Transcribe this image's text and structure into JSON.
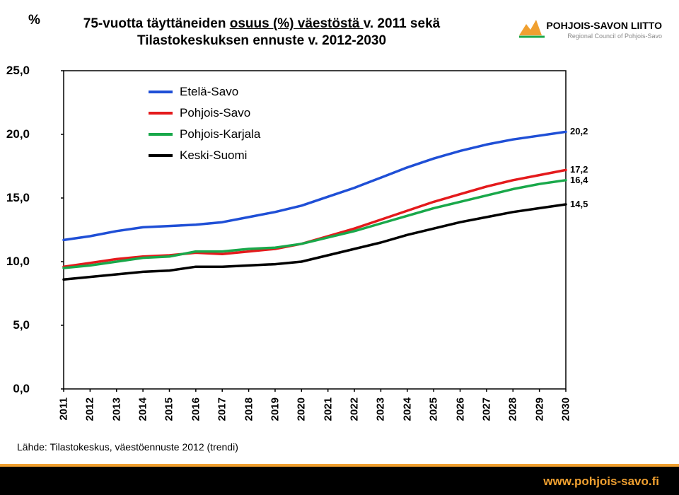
{
  "title_line1_pre": "75-vuotta täyttäneiden ",
  "title_line1_u": "osuus (%) väestöstä ",
  "title_line1_post": "v. 2011 sekä",
  "title_line2": "Tilastokeskuksen ennuste v. 2012-2030",
  "y_axis_symbol": "%",
  "logo_text": "POHJOIS-SAVON LIITTO",
  "logo_sub": "Regional Council of Pohjois-Savo",
  "source_text": "Lähde: Tilastokeskus, väestöennuste 2012 (trendi)",
  "footer_url": "www.pohjois-savo.fi",
  "chart": {
    "type": "line",
    "background_color": "#ffffff",
    "border_color": "#000000",
    "border_width": 1.5,
    "x": [
      2011,
      2012,
      2013,
      2014,
      2015,
      2016,
      2017,
      2018,
      2019,
      2020,
      2021,
      2022,
      2023,
      2024,
      2025,
      2026,
      2027,
      2028,
      2029,
      2030
    ],
    "ylim": [
      0,
      25
    ],
    "ytick_step": 5,
    "yticks": [
      "0,0",
      "5,0",
      "10,0",
      "15,0",
      "20,0",
      "25,0"
    ],
    "line_width": 3.5,
    "series": [
      {
        "name": "Etelä-Savo",
        "color": "#1f4fd6",
        "end_label": "20,2",
        "y": [
          11.7,
          12.0,
          12.4,
          12.7,
          12.8,
          12.9,
          13.1,
          13.5,
          13.9,
          14.4,
          15.1,
          15.8,
          16.6,
          17.4,
          18.1,
          18.7,
          19.2,
          19.6,
          19.9,
          20.2
        ]
      },
      {
        "name": "Pohjois-Savo",
        "color": "#e41a1c",
        "end_label": "17,2",
        "y": [
          9.6,
          9.9,
          10.2,
          10.4,
          10.5,
          10.7,
          10.6,
          10.8,
          11.0,
          11.4,
          12.0,
          12.6,
          13.3,
          14.0,
          14.7,
          15.3,
          15.9,
          16.4,
          16.8,
          17.2
        ]
      },
      {
        "name": "Pohjois-Karjala",
        "color": "#19a84a",
        "end_label": "16,4",
        "y": [
          9.5,
          9.7,
          10.0,
          10.3,
          10.4,
          10.8,
          10.8,
          11.0,
          11.1,
          11.4,
          11.9,
          12.4,
          13.0,
          13.6,
          14.2,
          14.7,
          15.2,
          15.7,
          16.1,
          16.4
        ]
      },
      {
        "name": "Keski-Suomi",
        "color": "#000000",
        "end_label": "14,5",
        "y": [
          8.6,
          8.8,
          9.0,
          9.2,
          9.3,
          9.6,
          9.6,
          9.7,
          9.8,
          10.0,
          10.5,
          11.0,
          11.5,
          12.1,
          12.6,
          13.1,
          13.5,
          13.9,
          14.2,
          14.5
        ]
      }
    ]
  }
}
